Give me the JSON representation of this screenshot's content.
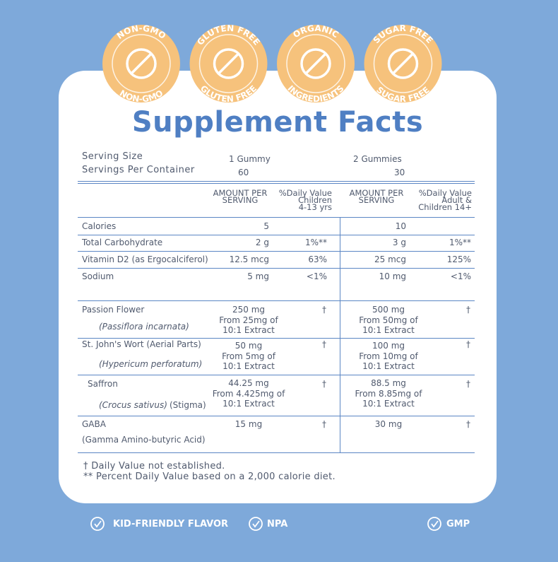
{
  "badges": [
    {
      "top": "NON-GMO",
      "bottom": "NON-GMO"
    },
    {
      "top": "GLUTEN FREE",
      "bottom": "GLUTEN FREE"
    },
    {
      "top": "ORGANIC",
      "bottom": "INGREDIENTS"
    },
    {
      "top": "SUGAR FREE",
      "bottom": "SUGAR FREE"
    }
  ],
  "title": "Supplement Facts",
  "serving": {
    "labels": [
      "Serving Size",
      "Servings Per Container"
    ],
    "col1": [
      "1 Gummy",
      "60"
    ],
    "col2": [
      "2 Gummies",
      "30"
    ]
  },
  "headers": [
    [
      "AMOUNT PER",
      "SERVING"
    ],
    [
      "%Daily Value",
      "Children",
      "4-13 yrs"
    ],
    [
      "AMOUNT PER",
      "SERVING"
    ],
    [
      "%Daily Value",
      "Adult &",
      "Children 14+"
    ]
  ],
  "rows": [
    {
      "name": "Calories",
      "amount1": "5",
      "dv1": "",
      "amount2": "10",
      "dv2": ""
    },
    {
      "name": "Total Carbohydrate",
      "amount1": "2 g",
      "dv1": "1%**",
      "amount2": "3 g",
      "dv2": "1%**"
    },
    {
      "name": "Vitamin D2 (as Ergocalciferol)",
      "amount1": "12.5 mcg",
      "dv1": "63%",
      "amount2": "25 mcg",
      "dv2": "125%"
    },
    {
      "name": "Sodium",
      "amount1": "5 mg",
      "dv1": "<1%",
      "amount2": "10 mg",
      "dv2": "<1%"
    }
  ],
  "botanicals": [
    {
      "name": "Passion Flower",
      "sub": "(Passiflora incarnata)",
      "amount1": [
        "250 mg",
        "From 25mg of",
        "10:1 Extract"
      ],
      "dv1": "†",
      "amount2": [
        "500 mg",
        "From 50mg of",
        "10:1 Extract"
      ],
      "dv2": "†"
    },
    {
      "name": "St. John's Wort (Aerial Parts)",
      "sub": "(Hypericum perforatum)",
      "amount1": [
        "50 mg",
        "From 5mg of",
        "10:1 Extract"
      ],
      "dv1": "†",
      "amount2": [
        "100 mg",
        "From 10mg of",
        "10:1 Extract"
      ],
      "dv2": "†"
    },
    {
      "name": "Saffron",
      "sub": "(Crocus sativus)",
      "note": "(Stigma)",
      "amount1": [
        "44.25 mg",
        "From 4.425mg of",
        "10:1 Extract"
      ],
      "dv1": "†",
      "amount2": [
        "88.5 mg",
        "From 8.85mg of",
        "10:1 Extract"
      ],
      "dv2": "†"
    },
    {
      "name": "GABA",
      "note": "(Gamma Amino-butyric Acid)",
      "amount1": [
        "15 mg"
      ],
      "dv1": "†",
      "amount2": [
        "30 mg"
      ],
      "dv2": "†"
    }
  ],
  "footnotes": [
    "† Daily Value  not established.",
    "** Percent Daily Value based on a 2,000 calorie diet."
  ],
  "features": [
    "KID-FRIENDLY FLAVOR",
    "NPA",
    "GMP"
  ]
}
